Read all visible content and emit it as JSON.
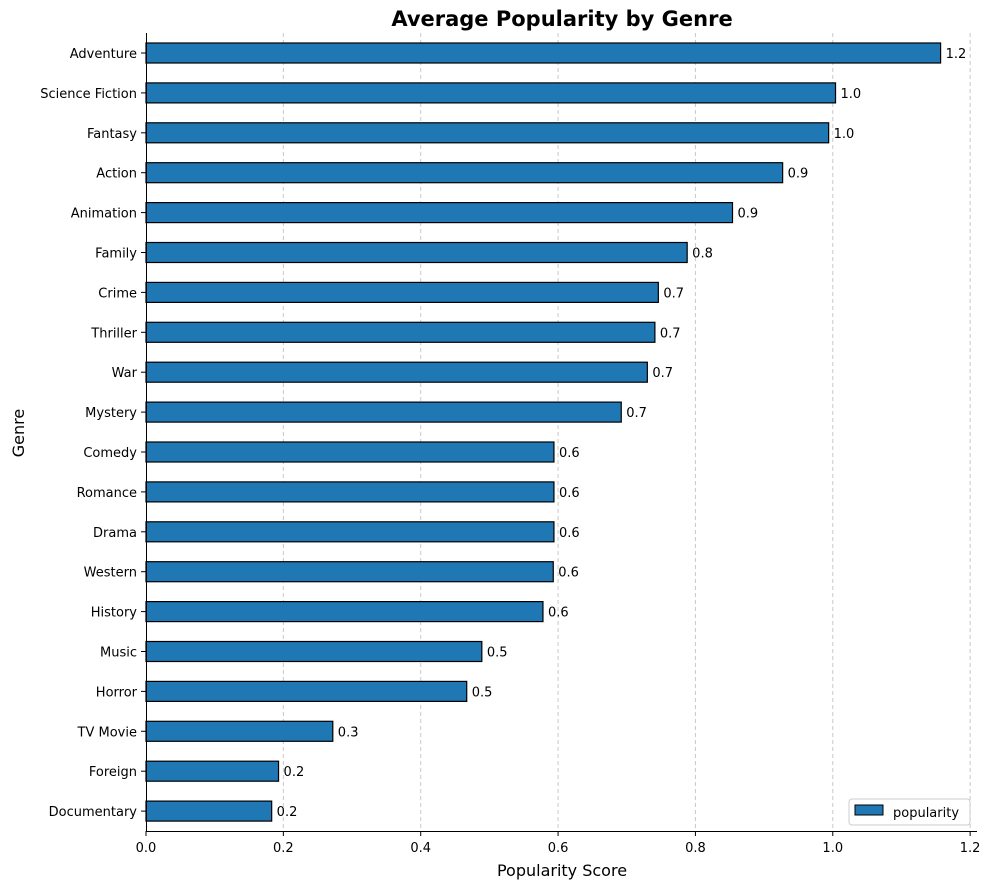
{
  "chart_data": {
    "type": "bar",
    "orientation": "horizontal",
    "title": "Average Popularity by Genre",
    "xlabel": "Popularity Score",
    "ylabel": "Genre",
    "xlim": [
      0,
      1.21
    ],
    "xticks": [
      0.0,
      0.2,
      0.4,
      0.6,
      0.8,
      1.0,
      1.2
    ],
    "grid": "x-dashed",
    "legend_position": "lower-right",
    "bar_color": "#1f77b4",
    "bar_edge_color": "#000000",
    "grid_color": "#c8c8c8",
    "series": [
      {
        "name": "popularity",
        "categories": [
          "Adventure",
          "Science Fiction",
          "Fantasy",
          "Action",
          "Animation",
          "Family",
          "Crime",
          "Thriller",
          "War",
          "Mystery",
          "Comedy",
          "Romance",
          "Drama",
          "Western",
          "History",
          "Music",
          "Horror",
          "TV Movie",
          "Foreign",
          "Documentary"
        ],
        "values": [
          1.157,
          1.004,
          0.994,
          0.927,
          0.854,
          0.788,
          0.746,
          0.741,
          0.73,
          0.692,
          0.594,
          0.594,
          0.594,
          0.593,
          0.578,
          0.489,
          0.467,
          0.272,
          0.193,
          0.183
        ],
        "labels": [
          "1.2",
          "1.0",
          "1.0",
          "0.9",
          "0.9",
          "0.8",
          "0.7",
          "0.7",
          "0.7",
          "0.7",
          "0.6",
          "0.6",
          "0.6",
          "0.6",
          "0.6",
          "0.5",
          "0.5",
          "0.3",
          "0.2",
          "0.2"
        ]
      }
    ]
  }
}
